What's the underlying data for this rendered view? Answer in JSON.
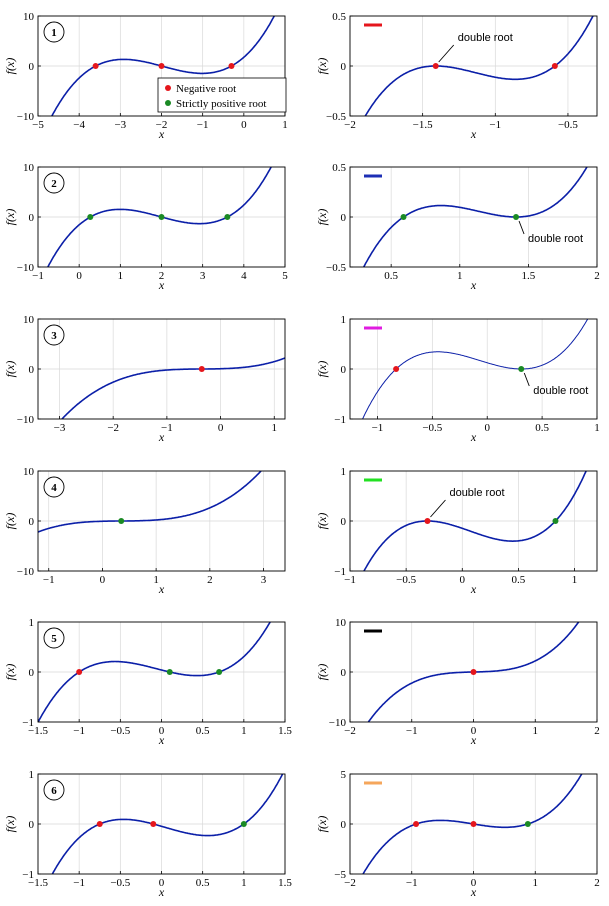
{
  "colors": {
    "curve": "#0b1fa8",
    "negative_root": "#e5161c",
    "positive_root": "#1a8a24",
    "grid": "#d9d9d9"
  },
  "legend": {
    "negative": "Negative root",
    "positive": "Strictly positive root"
  },
  "chart_data": [
    {
      "type": "line",
      "panel": "1",
      "xlabel": "x",
      "ylabel": "f(x)",
      "xlim": [
        -5,
        1
      ],
      "ylim": [
        -10,
        10
      ],
      "xticks": [
        -5,
        -4,
        -3,
        -2,
        -1,
        0,
        1
      ],
      "yticks": [
        -10,
        0,
        10
      ],
      "roots": [
        -3.6,
        -2.0,
        -0.3
      ],
      "root_types": [
        "negative",
        "negative",
        "negative"
      ],
      "show_legend": true,
      "curve_width": 1.6
    },
    {
      "type": "line",
      "marker_color": "#e5161c",
      "xlabel": "x",
      "ylabel": "f(x)",
      "xlim": [
        -2,
        -0.3
      ],
      "ylim": [
        -0.5,
        0.5
      ],
      "xticks": [
        -2,
        -1.5,
        -1,
        -0.5
      ],
      "yticks": [
        -0.5,
        0,
        0.5
      ],
      "roots": [
        -1.41,
        -0.59
      ],
      "root_types": [
        "negative",
        "negative"
      ],
      "annotation": {
        "text": "double root",
        "at": -1.41
      },
      "curve_width": 1.6
    },
    {
      "type": "line",
      "panel": "2",
      "xlabel": "x",
      "ylabel": "f(x)",
      "xlim": [
        -1,
        5
      ],
      "ylim": [
        -10,
        10
      ],
      "xticks": [
        -1,
        0,
        1,
        2,
        3,
        4,
        5
      ],
      "yticks": [
        -10,
        0,
        10
      ],
      "roots": [
        0.27,
        2.0,
        3.6
      ],
      "root_types": [
        "positive",
        "positive",
        "positive"
      ],
      "curve_width": 1.6
    },
    {
      "type": "line",
      "marker_color": "#1d2fb5",
      "xlabel": "x",
      "ylabel": "f(x)",
      "xlim": [
        0.2,
        2
      ],
      "ylim": [
        -0.5,
        0.5
      ],
      "xticks": [
        0.5,
        1,
        1.5,
        2
      ],
      "yticks": [
        -0.5,
        0,
        0.5
      ],
      "roots": [
        0.59,
        1.41
      ],
      "root_types": [
        "positive",
        "positive"
      ],
      "annotation": {
        "text": "double root",
        "at": 1.41
      },
      "curve_width": 1.6
    },
    {
      "type": "line",
      "panel": "3",
      "xlabel": "x",
      "ylabel": "f(x)",
      "xlim": [
        -3.4,
        1.2
      ],
      "ylim": [
        -10,
        10
      ],
      "xticks": [
        -3,
        -2,
        -1,
        0,
        1
      ],
      "yticks": [
        -10,
        0,
        10
      ],
      "roots": [
        -0.35
      ],
      "root_types": [
        "negative"
      ],
      "curve_width": 1.6
    },
    {
      "type": "line",
      "marker_color": "#e01ce0",
      "xlabel": "x",
      "ylabel": "f(x)",
      "xlim": [
        -1.25,
        1
      ],
      "ylim": [
        -1,
        1
      ],
      "xticks": [
        -1,
        -0.5,
        0,
        0.5,
        1
      ],
      "yticks": [
        -1,
        0,
        1
      ],
      "roots": [
        -0.83,
        0.31
      ],
      "root_types": [
        "negative",
        "positive"
      ],
      "annotation": {
        "text": "double root",
        "at": 0.31
      },
      "curve_width": 1.0
    },
    {
      "type": "line",
      "panel": "4",
      "xlabel": "x",
      "ylabel": "f(x)",
      "xlim": [
        -1.2,
        3.4
      ],
      "ylim": [
        -10,
        10
      ],
      "xticks": [
        -1,
        0,
        1,
        2,
        3
      ],
      "yticks": [
        -10,
        0,
        10
      ],
      "roots": [
        0.35
      ],
      "root_types": [
        "positive"
      ],
      "curve_width": 1.6
    },
    {
      "type": "line",
      "marker_color": "#22e022",
      "xlabel": "x",
      "ylabel": "f(x)",
      "xlim": [
        -1,
        1.2
      ],
      "ylim": [
        -1,
        1
      ],
      "xticks": [
        -1,
        -0.5,
        0,
        0.5,
        1
      ],
      "yticks": [
        -1,
        0,
        1
      ],
      "roots": [
        -0.31,
        0.83
      ],
      "root_types": [
        "negative",
        "positive"
      ],
      "annotation": {
        "text": "double root",
        "at": -0.31
      },
      "curve_width": 1.6
    },
    {
      "type": "line",
      "panel": "5",
      "xlabel": "x",
      "ylabel": "f(x)",
      "xlim": [
        -1.5,
        1.5
      ],
      "ylim": [
        -1,
        1
      ],
      "xticks": [
        -1.5,
        -1,
        -0.5,
        0,
        0.5,
        1,
        1.5
      ],
      "yticks": [
        -1,
        0,
        1
      ],
      "roots": [
        -1.0,
        0.1,
        0.7
      ],
      "root_types": [
        "negative",
        "positive",
        "positive"
      ],
      "curve_width": 1.6
    },
    {
      "type": "line",
      "marker_color": "#000000",
      "xlabel": "x",
      "ylabel": "f(x)",
      "xlim": [
        -2,
        2
      ],
      "ylim": [
        -10,
        10
      ],
      "xticks": [
        -2,
        -1,
        0,
        1,
        2
      ],
      "yticks": [
        -10,
        0,
        10
      ],
      "roots": [
        0.0
      ],
      "root_types": [
        "negative"
      ],
      "curve_width": 1.6
    },
    {
      "type": "line",
      "panel": "6",
      "xlabel": "x",
      "ylabel": "f(x)",
      "xlim": [
        -1.5,
        1.5
      ],
      "ylim": [
        -1,
        1
      ],
      "xticks": [
        -1.5,
        -1,
        -0.5,
        0,
        0.5,
        1,
        1.5
      ],
      "yticks": [
        -1,
        0,
        1
      ],
      "roots": [
        -0.75,
        -0.1,
        1.0
      ],
      "root_types": [
        "negative",
        "negative",
        "positive"
      ],
      "curve_width": 1.6
    },
    {
      "type": "line",
      "marker_color": "#f5a65b",
      "xlabel": "x",
      "ylabel": "f(x)",
      "xlim": [
        -2,
        2
      ],
      "ylim": [
        -5,
        5
      ],
      "xticks": [
        -2,
        -1,
        0,
        1,
        2
      ],
      "yticks": [
        -5,
        0,
        5
      ],
      "roots": [
        -0.93,
        0.0,
        0.88
      ],
      "root_types": [
        "negative",
        "negative",
        "positive"
      ],
      "curve_width": 1.6
    }
  ]
}
